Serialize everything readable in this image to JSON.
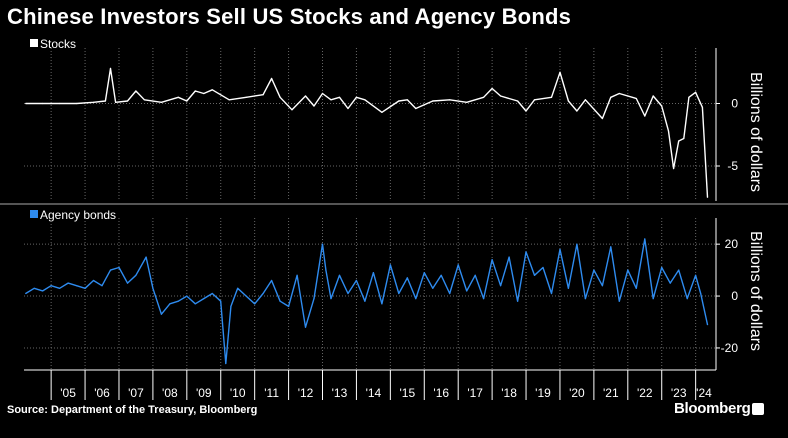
{
  "title": "Chinese Investors Sell US Stocks and Agency Bonds",
  "source": "Source: Department of the Treasury, Bloomberg",
  "brand": "Bloomberg",
  "colors": {
    "stocks": "#ffffff",
    "agency": "#2e8bef",
    "background": "#000000",
    "grid": "#666666"
  },
  "chart_data": [
    {
      "type": "line",
      "title": "",
      "legend": "Stocks",
      "ylabel": "Billions of dollars",
      "ylim": [
        -7.8,
        3.8
      ],
      "yticks": [
        "0",
        "-5"
      ],
      "yticks_values": [
        0,
        -5
      ],
      "xlim": [
        2004.2,
        2024.6
      ],
      "series": [
        {
          "name": "Stocks",
          "x": [
            2004.25,
            2004.75,
            2005.25,
            2005.75,
            2006.25,
            2006.6,
            2006.75,
            2006.9,
            2007.25,
            2007.5,
            2007.75,
            2008.25,
            2008.75,
            2009.0,
            2009.25,
            2009.5,
            2009.75,
            2010.25,
            2010.75,
            2011.25,
            2011.5,
            2011.75,
            2012.1,
            2012.5,
            2012.75,
            2013.0,
            2013.25,
            2013.5,
            2013.75,
            2014.0,
            2014.25,
            2014.75,
            2015.25,
            2015.5,
            2015.75,
            2016.25,
            2016.75,
            2017.25,
            2017.75,
            2018.0,
            2018.25,
            2018.75,
            2019.0,
            2019.25,
            2019.75,
            2020.0,
            2020.25,
            2020.5,
            2020.75,
            2021.25,
            2021.5,
            2021.75,
            2022.25,
            2022.5,
            2022.75,
            2023.0,
            2023.2,
            2023.35,
            2023.5,
            2023.65,
            2023.8,
            2024.0,
            2024.2,
            2024.35
          ],
          "values": [
            0.0,
            0.0,
            0.0,
            0.0,
            0.1,
            0.2,
            2.8,
            0.1,
            0.2,
            1.0,
            0.3,
            0.1,
            0.5,
            0.2,
            1.0,
            0.8,
            1.1,
            0.3,
            0.5,
            0.7,
            2.0,
            0.5,
            -0.5,
            0.6,
            -0.2,
            0.8,
            0.3,
            0.5,
            -0.4,
            0.5,
            0.3,
            -0.7,
            0.2,
            0.3,
            -0.4,
            0.2,
            0.3,
            0.1,
            0.5,
            1.2,
            0.6,
            0.2,
            -0.6,
            0.3,
            0.5,
            2.5,
            0.2,
            -0.6,
            0.3,
            -1.2,
            0.5,
            0.8,
            0.4,
            -1.0,
            0.6,
            -0.2,
            -2.2,
            -5.2,
            -3.0,
            -2.8,
            0.5,
            0.9,
            -0.3,
            -7.5
          ]
        }
      ]
    },
    {
      "type": "line",
      "title": "",
      "legend": "Agency bonds",
      "ylabel": "Billions of dollars",
      "ylim": [
        -28.5,
        27
      ],
      "yticks": [
        "20",
        "0",
        "-20"
      ],
      "yticks_values": [
        20,
        0,
        -20
      ],
      "xlim": [
        2004.2,
        2024.6
      ],
      "xticks": [
        "'05",
        "'06",
        "'07",
        "'08",
        "'09",
        "'10",
        "'11",
        "'12",
        "'13",
        "'14",
        "'15",
        "'16",
        "'17",
        "'18",
        "'19",
        "'20",
        "'21",
        "'22",
        "'23",
        "'24"
      ],
      "xticks_values": [
        2005,
        2006,
        2007,
        2008,
        2009,
        2010,
        2011,
        2012,
        2013,
        2014,
        2015,
        2016,
        2017,
        2018,
        2019,
        2020,
        2021,
        2022,
        2023,
        2024
      ],
      "series": [
        {
          "name": "Agency bonds",
          "x": [
            2004.25,
            2004.5,
            2004.75,
            2005.0,
            2005.25,
            2005.5,
            2005.75,
            2006.0,
            2006.25,
            2006.5,
            2006.75,
            2007.0,
            2007.25,
            2007.5,
            2007.8,
            2008.0,
            2008.25,
            2008.5,
            2008.75,
            2009.0,
            2009.25,
            2009.5,
            2009.75,
            2010.0,
            2010.15,
            2010.3,
            2010.5,
            2010.75,
            2011.0,
            2011.25,
            2011.5,
            2011.75,
            2012.0,
            2012.25,
            2012.5,
            2012.75,
            2013.0,
            2013.1,
            2013.25,
            2013.5,
            2013.75,
            2014.0,
            2014.25,
            2014.5,
            2014.75,
            2015.0,
            2015.25,
            2015.5,
            2015.75,
            2016.0,
            2016.25,
            2016.5,
            2016.75,
            2017.0,
            2017.25,
            2017.5,
            2017.75,
            2018.0,
            2018.25,
            2018.5,
            2018.75,
            2019.0,
            2019.25,
            2019.5,
            2019.75,
            2020.0,
            2020.25,
            2020.5,
            2020.75,
            2021.0,
            2021.25,
            2021.5,
            2021.75,
            2022.0,
            2022.25,
            2022.5,
            2022.75,
            2023.0,
            2023.25,
            2023.5,
            2023.75,
            2024.0,
            2024.15,
            2024.35
          ],
          "values": [
            1,
            3,
            2,
            4,
            3,
            5,
            4,
            3,
            6,
            4,
            10,
            11,
            5,
            8,
            15,
            3,
            -7,
            -3,
            -2,
            0,
            -3,
            -1,
            1,
            -2,
            -26,
            -4,
            3,
            0,
            -3,
            1,
            6,
            -2,
            -4,
            8,
            -12,
            -1,
            20,
            10,
            -1,
            8,
            1,
            6,
            -2,
            9,
            -3,
            12,
            1,
            7,
            -1,
            9,
            3,
            8,
            1,
            12,
            2,
            8,
            -1,
            14,
            4,
            15,
            -2,
            17,
            8,
            11,
            1,
            18,
            3,
            20,
            -1,
            10,
            4,
            19,
            -2,
            10,
            3,
            22,
            -1,
            11,
            5,
            10,
            -1,
            8,
            1,
            -11
          ]
        }
      ]
    }
  ]
}
